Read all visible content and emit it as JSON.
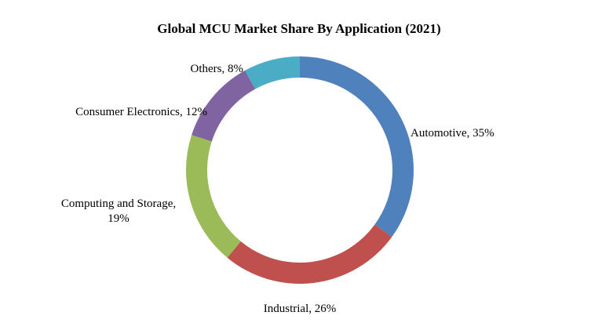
{
  "chart_data": {
    "type": "pie",
    "subtype": "donut",
    "title": "Global MCU Market Share By Application (2021)",
    "legend": "none",
    "slices": [
      {
        "name": "Automotive",
        "value": 35,
        "label_lines": [
          "Automotive, 35%"
        ],
        "color": "#4f81bd"
      },
      {
        "name": "Industrial",
        "value": 26,
        "label_lines": [
          "Industrial, 26%"
        ],
        "color": "#c0504d"
      },
      {
        "name": "Computing and Storage",
        "value": 19,
        "label_lines": [
          "Computing and Storage,",
          "19%"
        ],
        "color": "#9bbb59"
      },
      {
        "name": "Consumer Electronics",
        "value": 12,
        "label_lines": [
          "Consumer Electronics, 12%"
        ],
        "color": "#8064a2"
      },
      {
        "name": "Others",
        "value": 8,
        "label_lines": [
          "Others, 8%"
        ],
        "color": "#4bacc6"
      }
    ]
  }
}
